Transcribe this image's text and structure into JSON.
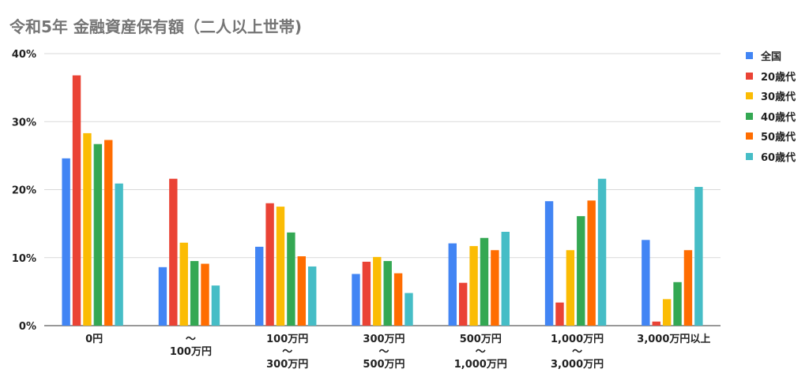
{
  "chart_data": {
    "type": "bar",
    "title": "令和5年 金融資産保有額（二人以上世帯)",
    "categories": [
      [
        "0円"
      ],
      [
        "〜",
        "100万円"
      ],
      [
        "100万円",
        "〜",
        "300万円"
      ],
      [
        "300万円",
        "〜",
        "500万円"
      ],
      [
        "500万円",
        "〜",
        "1,000万円"
      ],
      [
        "1,000万円",
        "〜",
        "3,000万円"
      ],
      [
        "3,000万円以上"
      ]
    ],
    "y_ticks": [
      "0%",
      "10%",
      "20%",
      "30%",
      "40%"
    ],
    "ylim": [
      0,
      40
    ],
    "unit": "%",
    "grid": true,
    "legend_position": "right",
    "series": [
      {
        "name": "全国",
        "color": "#4285f4",
        "values": [
          24.6,
          8.6,
          11.6,
          7.6,
          12.1,
          18.3,
          12.6
        ]
      },
      {
        "name": "20歳代",
        "color": "#ea4335",
        "values": [
          36.8,
          21.6,
          18.0,
          9.4,
          6.3,
          3.4,
          0.6
        ]
      },
      {
        "name": "30歳代",
        "color": "#fbbc04",
        "values": [
          28.3,
          12.2,
          17.5,
          10.1,
          11.7,
          11.1,
          3.9
        ]
      },
      {
        "name": "40歳代",
        "color": "#34a853",
        "values": [
          26.7,
          9.5,
          13.7,
          9.5,
          12.9,
          16.1,
          6.4
        ]
      },
      {
        "name": "50歳代",
        "color": "#ff6d01",
        "values": [
          27.3,
          9.1,
          10.2,
          7.7,
          11.1,
          18.4,
          11.1
        ]
      },
      {
        "name": "60歳代",
        "color": "#46bdc6",
        "values": [
          20.9,
          5.9,
          8.7,
          4.8,
          13.8,
          21.6,
          20.4
        ]
      }
    ]
  }
}
